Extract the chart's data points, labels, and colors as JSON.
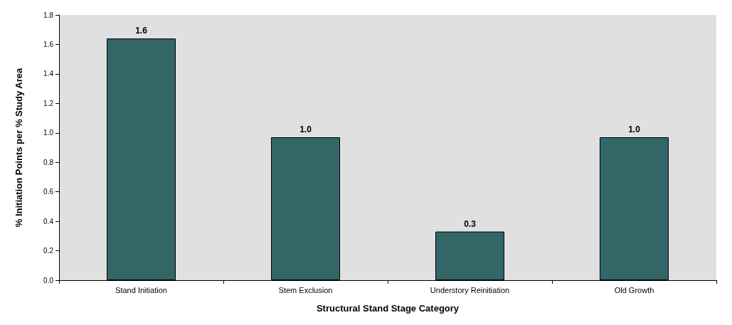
{
  "chart_data": {
    "type": "bar",
    "xlabel": "Structural Stand Stage Category",
    "ylabel": "% Initiation Points per % Study Area",
    "categories": [
      "Stand Initiation",
      "Stem Exclusion",
      "Understory Reinitiation",
      "Old Growth"
    ],
    "values": [
      1.64,
      0.97,
      0.33,
      0.97
    ],
    "value_labels": [
      "1.6",
      "1.0",
      "0.3",
      "1.0"
    ],
    "color": "#336666",
    "ylim": [
      0,
      1.8
    ],
    "yticks": [
      {
        "value": 0,
        "label": "0.0"
      },
      {
        "value": 0.2,
        "label": "0.2"
      },
      {
        "value": 0.4,
        "label": "0.4"
      },
      {
        "value": 0.6,
        "label": "0.6"
      },
      {
        "value": 0.8,
        "label": "0.8"
      },
      {
        "value": 1,
        "label": "1.0"
      },
      {
        "value": 1.2,
        "label": "1.2"
      },
      {
        "value": 1.4,
        "label": "1.4"
      },
      {
        "value": 1.6,
        "label": "1.6"
      },
      {
        "value": 1.8,
        "label": "1.8"
      }
    ]
  }
}
